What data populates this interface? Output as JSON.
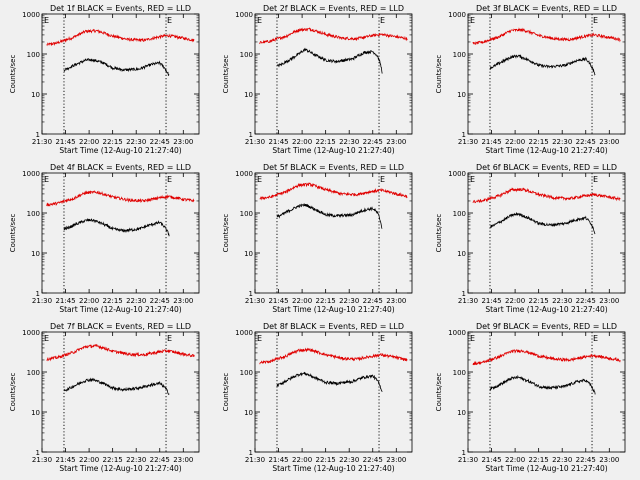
{
  "figure": {
    "background": "#f0f0f0",
    "colors": {
      "events": "#000000",
      "lld": "#e00000",
      "axes": "#000000"
    }
  },
  "chart_data": [
    {
      "type": "line",
      "title": "Det 1f BLACK = Events, RED = LLD",
      "xlabel": "Start Time (12-Aug-10 21:27:40)",
      "ylabel": "Counts/sec",
      "yscale": "log",
      "ylim": [
        1,
        1000
      ],
      "xlim": [
        "21:30",
        "23:10"
      ],
      "x_ticks": [
        "21:30",
        "21:45",
        "22:00",
        "22:15",
        "22:30",
        "22:45",
        "23:00"
      ],
      "y_ticks": [
        "1",
        "10",
        "100",
        "1000"
      ],
      "markers": [
        {
          "x": "21:44",
          "label": ""
        },
        {
          "x": "22:49",
          "label": "E"
        }
      ],
      "corner_label": "E",
      "series": [
        {
          "x": [
            "21:33",
            "21:40",
            "21:50",
            "21:58",
            "22:05",
            "22:15",
            "22:25",
            "22:35",
            "22:45",
            "22:50",
            "22:55",
            "23:00",
            "23:07"
          ],
          "values": [
            170,
            190,
            260,
            370,
            380,
            280,
            230,
            220,
            270,
            290,
            270,
            250,
            220
          ]
        },
        {
          "x": [
            "21:44",
            "21:47",
            "21:53",
            "21:58",
            "22:02",
            "22:08",
            "22:15",
            "22:22",
            "22:32",
            "22:40",
            "22:45",
            "22:48",
            "22:51"
          ],
          "values": [
            40,
            45,
            58,
            70,
            72,
            62,
            45,
            40,
            42,
            55,
            60,
            45,
            28
          ]
        }
      ]
    },
    {
      "type": "line",
      "title": "Det 2f BLACK = Events, RED = LLD",
      "xlabel": "Start Time (12-Aug-10 21:27:40)",
      "ylabel": "Counts/sec",
      "yscale": "log",
      "ylim": [
        1,
        1000
      ],
      "xlim": [
        "21:30",
        "23:10"
      ],
      "x_ticks": [
        "21:30",
        "21:45",
        "22:00",
        "22:15",
        "22:30",
        "22:45",
        "23:00"
      ],
      "y_ticks": [
        "1",
        "10",
        "100",
        "1000"
      ],
      "markers": [
        {
          "x": "21:44",
          "label": ""
        },
        {
          "x": "22:49",
          "label": "E"
        }
      ],
      "corner_label": "E",
      "series": [
        {
          "x": [
            "21:33",
            "21:40",
            "21:50",
            "21:58",
            "22:05",
            "22:15",
            "22:25",
            "22:35",
            "22:45",
            "22:50",
            "22:55",
            "23:00",
            "23:07"
          ],
          "values": [
            190,
            210,
            280,
            400,
            420,
            310,
            250,
            240,
            290,
            310,
            290,
            270,
            240
          ]
        },
        {
          "x": [
            "21:44",
            "21:47",
            "21:53",
            "21:58",
            "22:02",
            "22:08",
            "22:15",
            "22:22",
            "22:32",
            "22:40",
            "22:45",
            "22:48",
            "22:51"
          ],
          "values": [
            50,
            55,
            75,
            100,
            130,
            95,
            70,
            65,
            75,
            110,
            115,
            90,
            35
          ]
        }
      ]
    },
    {
      "type": "line",
      "title": "Det 3f BLACK = Events, RED = LLD",
      "xlabel": "Start Time (12-Aug-10 21:27:40)",
      "ylabel": "Counts/sec",
      "yscale": "log",
      "ylim": [
        1,
        1000
      ],
      "xlim": [
        "21:30",
        "23:10"
      ],
      "x_ticks": [
        "21:30",
        "21:45",
        "22:00",
        "22:15",
        "22:30",
        "22:45",
        "23:00"
      ],
      "y_ticks": [
        "1",
        "10",
        "100",
        "1000"
      ],
      "markers": [
        {
          "x": "21:44",
          "label": ""
        },
        {
          "x": "22:49",
          "label": "E"
        }
      ],
      "corner_label": "E",
      "series": [
        {
          "x": [
            "21:33",
            "21:40",
            "21:50",
            "21:58",
            "22:05",
            "22:15",
            "22:25",
            "22:35",
            "22:45",
            "22:50",
            "22:55",
            "23:00",
            "23:07"
          ],
          "values": [
            180,
            200,
            270,
            390,
            400,
            290,
            240,
            230,
            280,
            300,
            280,
            260,
            230
          ]
        },
        {
          "x": [
            "21:44",
            "21:47",
            "21:53",
            "21:58",
            "22:02",
            "22:08",
            "22:15",
            "22:22",
            "22:32",
            "22:40",
            "22:45",
            "22:48",
            "22:51"
          ],
          "values": [
            45,
            50,
            68,
            85,
            90,
            72,
            52,
            48,
            52,
            70,
            75,
            55,
            30
          ]
        }
      ]
    },
    {
      "type": "line",
      "title": "Det 4f BLACK = Events, RED = LLD",
      "xlabel": "Start Time (12-Aug-10 21:27:40)",
      "ylabel": "Counts/sec",
      "yscale": "log",
      "ylim": [
        1,
        1000
      ],
      "xlim": [
        "21:30",
        "23:10"
      ],
      "x_ticks": [
        "21:30",
        "21:45",
        "22:00",
        "22:15",
        "22:30",
        "22:45",
        "23:00"
      ],
      "y_ticks": [
        "1",
        "10",
        "100",
        "1000"
      ],
      "markers": [
        {
          "x": "21:44",
          "label": ""
        },
        {
          "x": "22:49",
          "label": "E"
        }
      ],
      "corner_label": "E",
      "series": [
        {
          "x": [
            "21:33",
            "21:40",
            "21:50",
            "21:58",
            "22:05",
            "22:15",
            "22:25",
            "22:35",
            "22:45",
            "22:50",
            "22:55",
            "23:00",
            "23:07"
          ],
          "values": [
            160,
            175,
            230,
            320,
            330,
            250,
            210,
            200,
            240,
            260,
            240,
            220,
            200
          ]
        },
        {
          "x": [
            "21:44",
            "21:47",
            "21:53",
            "21:58",
            "22:02",
            "22:08",
            "22:15",
            "22:22",
            "22:32",
            "22:40",
            "22:45",
            "22:48",
            "22:51"
          ],
          "values": [
            40,
            43,
            55,
            65,
            67,
            55,
            40,
            36,
            40,
            52,
            58,
            45,
            28
          ]
        }
      ]
    },
    {
      "type": "line",
      "title": "Det 5f BLACK = Events, RED = LLD",
      "xlabel": "Start Time (12-Aug-10 21:27:40)",
      "ylabel": "Counts/sec",
      "yscale": "log",
      "ylim": [
        1,
        1000
      ],
      "xlim": [
        "21:30",
        "23:10"
      ],
      "x_ticks": [
        "21:30",
        "21:45",
        "22:00",
        "22:15",
        "22:30",
        "22:45",
        "23:00"
      ],
      "y_ticks": [
        "1",
        "10",
        "100",
        "1000"
      ],
      "markers": [
        {
          "x": "21:44",
          "label": ""
        },
        {
          "x": "22:49",
          "label": "E"
        }
      ],
      "corner_label": "E",
      "series": [
        {
          "x": [
            "21:33",
            "21:40",
            "21:50",
            "21:58",
            "22:05",
            "22:15",
            "22:25",
            "22:35",
            "22:45",
            "22:50",
            "22:55",
            "23:00",
            "23:07"
          ],
          "values": [
            230,
            250,
            340,
            500,
            520,
            380,
            300,
            290,
            350,
            370,
            340,
            300,
            260
          ]
        },
        {
          "x": [
            "21:44",
            "21:47",
            "21:53",
            "21:58",
            "22:02",
            "22:08",
            "22:15",
            "22:22",
            "22:32",
            "22:40",
            "22:45",
            "22:48",
            "22:51"
          ],
          "values": [
            80,
            90,
            120,
            150,
            160,
            125,
            90,
            85,
            90,
            120,
            130,
            100,
            40
          ]
        }
      ]
    },
    {
      "type": "line",
      "title": "Det 6f BLACK = Events, RED = LLD",
      "xlabel": "Start Time (12-Aug-10 21:27:40)",
      "ylabel": "Counts/sec",
      "yscale": "log",
      "ylim": [
        1,
        1000
      ],
      "xlim": [
        "21:30",
        "23:10"
      ],
      "x_ticks": [
        "21:30",
        "21:45",
        "22:00",
        "22:15",
        "22:30",
        "22:45",
        "23:00"
      ],
      "y_ticks": [
        "1",
        "10",
        "100",
        "1000"
      ],
      "markers": [
        {
          "x": "21:44",
          "label": ""
        },
        {
          "x": "22:49",
          "label": "E"
        }
      ],
      "corner_label": "E",
      "series": [
        {
          "x": [
            "21:33",
            "21:40",
            "21:50",
            "21:58",
            "22:05",
            "22:15",
            "22:25",
            "22:35",
            "22:45",
            "22:50",
            "22:55",
            "23:00",
            "23:07"
          ],
          "values": [
            190,
            205,
            270,
            380,
            390,
            290,
            240,
            230,
            270,
            290,
            270,
            250,
            220
          ]
        },
        {
          "x": [
            "21:44",
            "21:47",
            "21:53",
            "21:58",
            "22:02",
            "22:08",
            "22:15",
            "22:22",
            "22:32",
            "22:40",
            "22:45",
            "22:48",
            "22:51"
          ],
          "values": [
            45,
            50,
            68,
            88,
            95,
            76,
            55,
            50,
            55,
            70,
            75,
            58,
            30
          ]
        }
      ]
    },
    {
      "type": "line",
      "title": "Det 7f BLACK = Events, RED = LLD",
      "xlabel": "Start Time (12-Aug-10 21:27:40)",
      "ylabel": "Counts/sec",
      "yscale": "log",
      "ylim": [
        1,
        1000
      ],
      "xlim": [
        "21:30",
        "23:10"
      ],
      "x_ticks": [
        "21:30",
        "21:45",
        "22:00",
        "22:15",
        "22:30",
        "22:45",
        "23:00"
      ],
      "y_ticks": [
        "1",
        "10",
        "100",
        "1000"
      ],
      "markers": [
        {
          "x": "21:44",
          "label": ""
        },
        {
          "x": "22:49",
          "label": "E"
        }
      ],
      "corner_label": "E",
      "series": [
        {
          "x": [
            "21:33",
            "21:40",
            "21:50",
            "21:58",
            "22:05",
            "22:15",
            "22:25",
            "22:35",
            "22:45",
            "22:50",
            "22:55",
            "23:00",
            "23:07"
          ],
          "values": [
            210,
            230,
            310,
            430,
            450,
            330,
            280,
            270,
            320,
            340,
            310,
            280,
            250
          ]
        },
        {
          "x": [
            "21:44",
            "21:47",
            "21:53",
            "21:58",
            "22:02",
            "22:08",
            "22:15",
            "22:22",
            "22:32",
            "22:40",
            "22:45",
            "22:48",
            "22:51"
          ],
          "values": [
            35,
            38,
            50,
            62,
            65,
            54,
            40,
            36,
            40,
            48,
            52,
            42,
            28
          ]
        }
      ]
    },
    {
      "type": "line",
      "title": "Det 8f BLACK = Events, RED = LLD",
      "xlabel": "Start Time (12-Aug-10 21:27:40)",
      "ylabel": "Counts/sec",
      "yscale": "log",
      "ylim": [
        1,
        1000
      ],
      "xlim": [
        "21:30",
        "23:10"
      ],
      "x_ticks": [
        "21:30",
        "21:45",
        "22:00",
        "22:15",
        "22:30",
        "22:45",
        "23:00"
      ],
      "y_ticks": [
        "1",
        "10",
        "100",
        "1000"
      ],
      "markers": [
        {
          "x": "21:44",
          "label": ""
        },
        {
          "x": "22:49",
          "label": "E"
        }
      ],
      "corner_label": "E",
      "series": [
        {
          "x": [
            "21:33",
            "21:40",
            "21:50",
            "21:58",
            "22:05",
            "22:15",
            "22:25",
            "22:35",
            "22:45",
            "22:50",
            "22:55",
            "23:00",
            "23:07"
          ],
          "values": [
            170,
            185,
            250,
            350,
            360,
            270,
            220,
            210,
            250,
            270,
            250,
            230,
            200
          ]
        },
        {
          "x": [
            "21:44",
            "21:47",
            "21:53",
            "21:58",
            "22:02",
            "22:08",
            "22:15",
            "22:22",
            "22:32",
            "22:40",
            "22:45",
            "22:48",
            "22:51"
          ],
          "values": [
            45,
            52,
            70,
            88,
            92,
            72,
            55,
            52,
            58,
            75,
            80,
            60,
            32
          ]
        }
      ]
    },
    {
      "type": "line",
      "title": "Det 9f BLACK = Events, RED = LLD",
      "xlabel": "Start Time (12-Aug-10 21:27:40)",
      "ylabel": "Counts/sec",
      "yscale": "log",
      "ylim": [
        1,
        1000
      ],
      "xlim": [
        "21:30",
        "23:10"
      ],
      "x_ticks": [
        "21:30",
        "21:45",
        "22:00",
        "22:15",
        "22:30",
        "22:45",
        "23:00"
      ],
      "y_ticks": [
        "1",
        "10",
        "100",
        "1000"
      ],
      "markers": [
        {
          "x": "21:44",
          "label": ""
        },
        {
          "x": "22:49",
          "label": "E"
        }
      ],
      "corner_label": "E",
      "series": [
        {
          "x": [
            "21:33",
            "21:40",
            "21:50",
            "21:58",
            "22:05",
            "22:15",
            "22:25",
            "22:35",
            "22:45",
            "22:50",
            "22:55",
            "23:00",
            "23:07"
          ],
          "values": [
            160,
            175,
            240,
            330,
            340,
            250,
            210,
            200,
            240,
            260,
            240,
            220,
            195
          ]
        },
        {
          "x": [
            "21:44",
            "21:47",
            "21:53",
            "21:58",
            "22:02",
            "22:08",
            "22:15",
            "22:22",
            "22:32",
            "22:40",
            "22:45",
            "22:48",
            "22:51"
          ],
          "values": [
            38,
            42,
            55,
            70,
            74,
            60,
            44,
            40,
            44,
            58,
            62,
            48,
            28
          ]
        }
      ]
    }
  ]
}
